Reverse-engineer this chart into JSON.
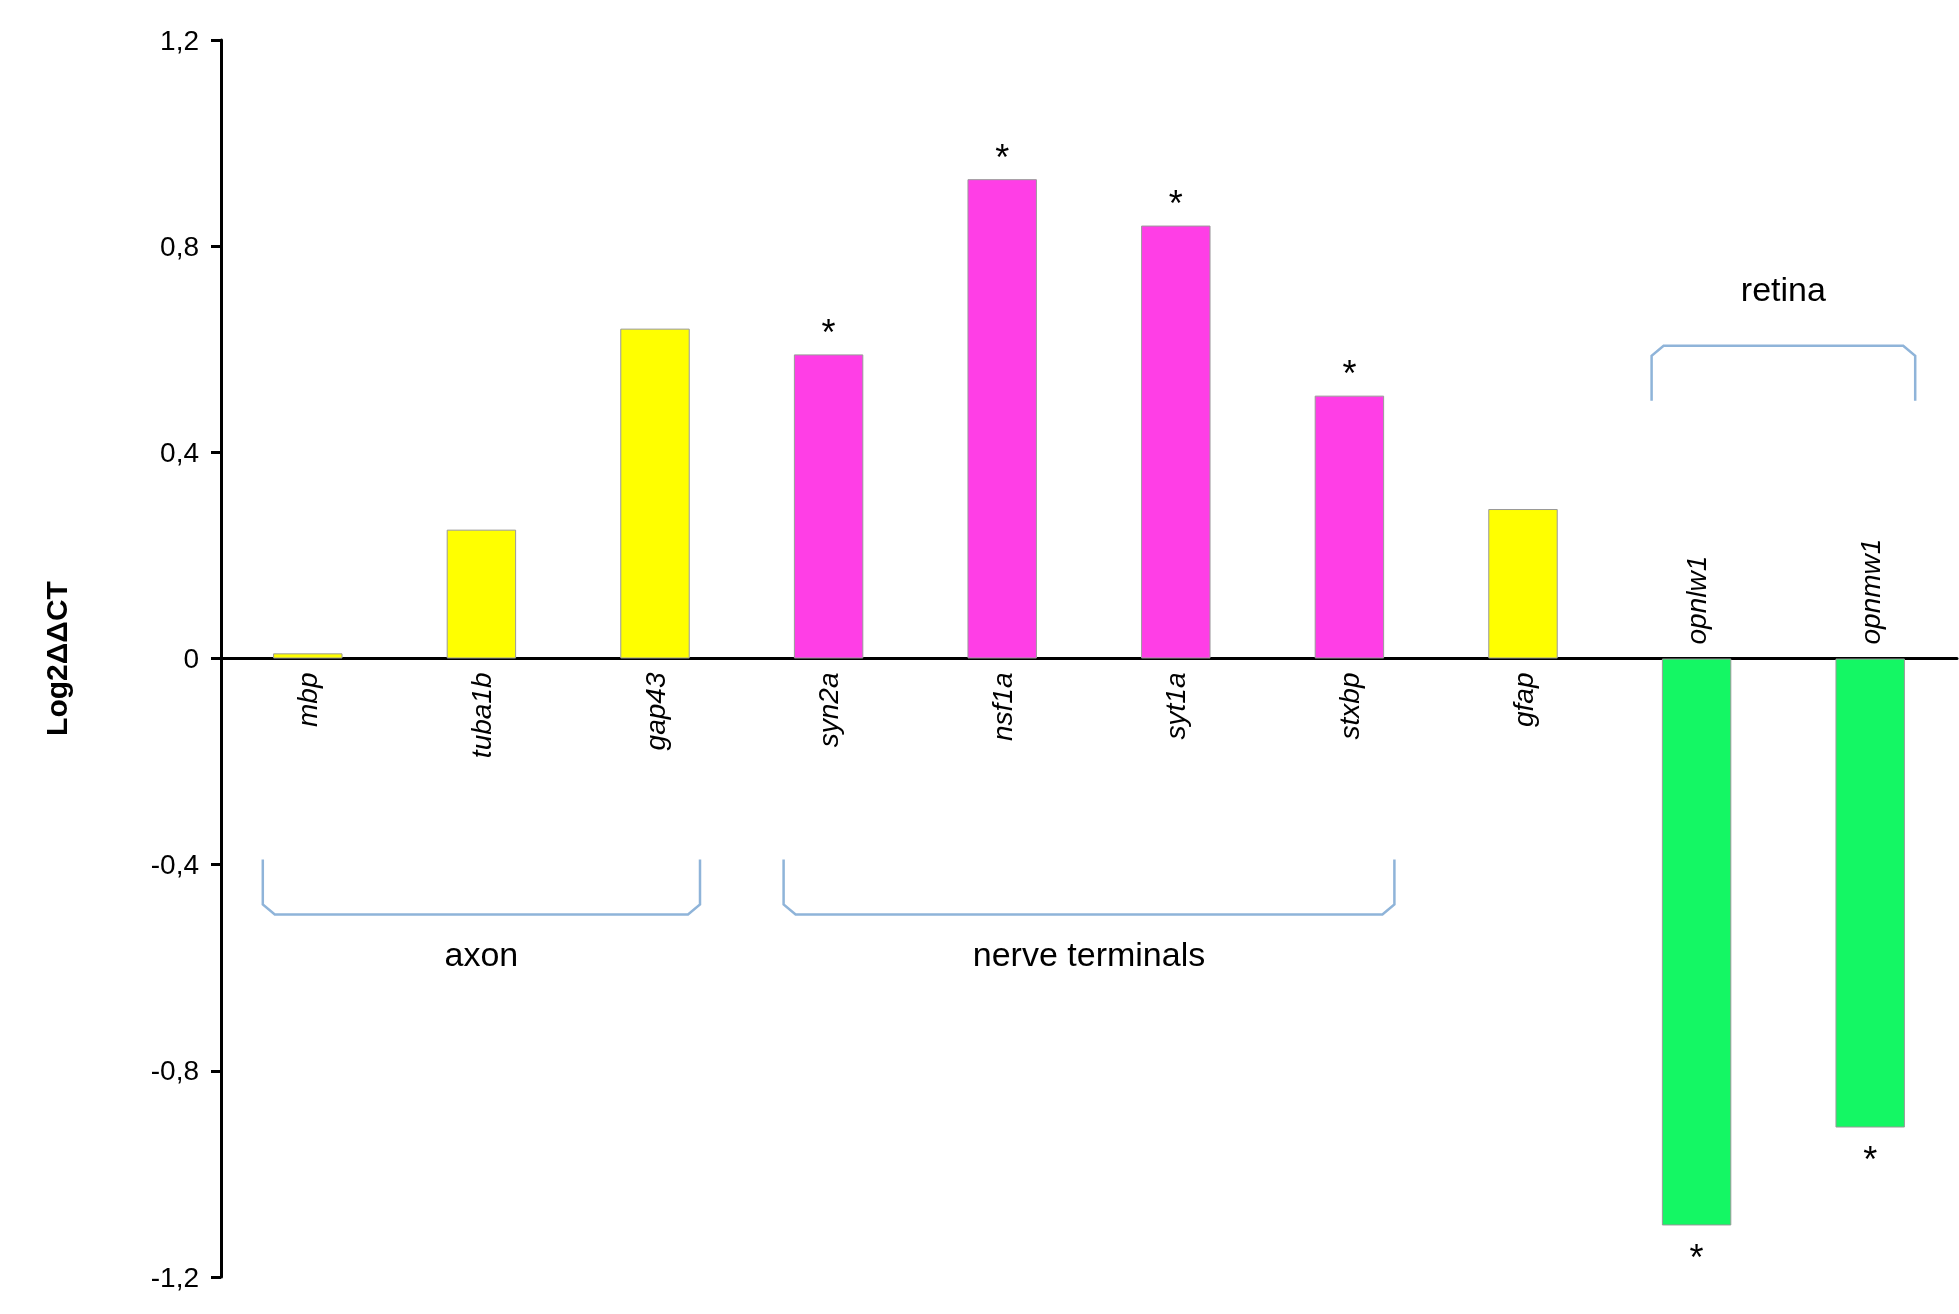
{
  "chart_data": {
    "type": "bar",
    "ylabel": "Log2ΔΔCT",
    "categories": [
      "mbp",
      "tuba1b",
      "gap43",
      "syn2a",
      "nsf1a",
      "syt1a",
      "stxbp",
      "gfap",
      "opnlw1",
      "opnmw1"
    ],
    "values": [
      0.01,
      0.25,
      0.64,
      0.59,
      0.93,
      0.84,
      0.51,
      0.29,
      -1.1,
      -0.91
    ],
    "colors": [
      "#ffff00",
      "#ffff00",
      "#ffff00",
      "#ff3ee6",
      "#ff3ee6",
      "#ff3ee6",
      "#ff3ee6",
      "#ffff00",
      "#14f764",
      "#14f764"
    ],
    "ylim": [
      -1.2,
      1.2
    ],
    "yticks": [
      {
        "value": -1.2,
        "label": "-1,2"
      },
      {
        "value": -0.8,
        "label": "-0,8"
      },
      {
        "value": -0.4,
        "label": "-0,4"
      },
      0,
      {
        "value": 0.4,
        "label": "0,4"
      },
      {
        "value": 0.8,
        "label": "0,8"
      },
      {
        "value": 1.2,
        "label": "1,2"
      }
    ],
    "grid": false,
    "annotations": [
      {
        "text": "*",
        "x": "syn2a",
        "y": 0.59
      },
      {
        "text": "*",
        "x": "nsf1a",
        "y": 0.93
      },
      {
        "text": "*",
        "x": "syt1a",
        "y": 0.84
      },
      {
        "text": "*",
        "x": "stxbp",
        "y": 0.51
      },
      {
        "text": "*",
        "x": "opnlw1",
        "y": -1.1
      },
      {
        "text": "*",
        "x": "opnmw1",
        "y": -0.91
      },
      "axon",
      "nerve terminals",
      "retina"
    ]
  }
}
